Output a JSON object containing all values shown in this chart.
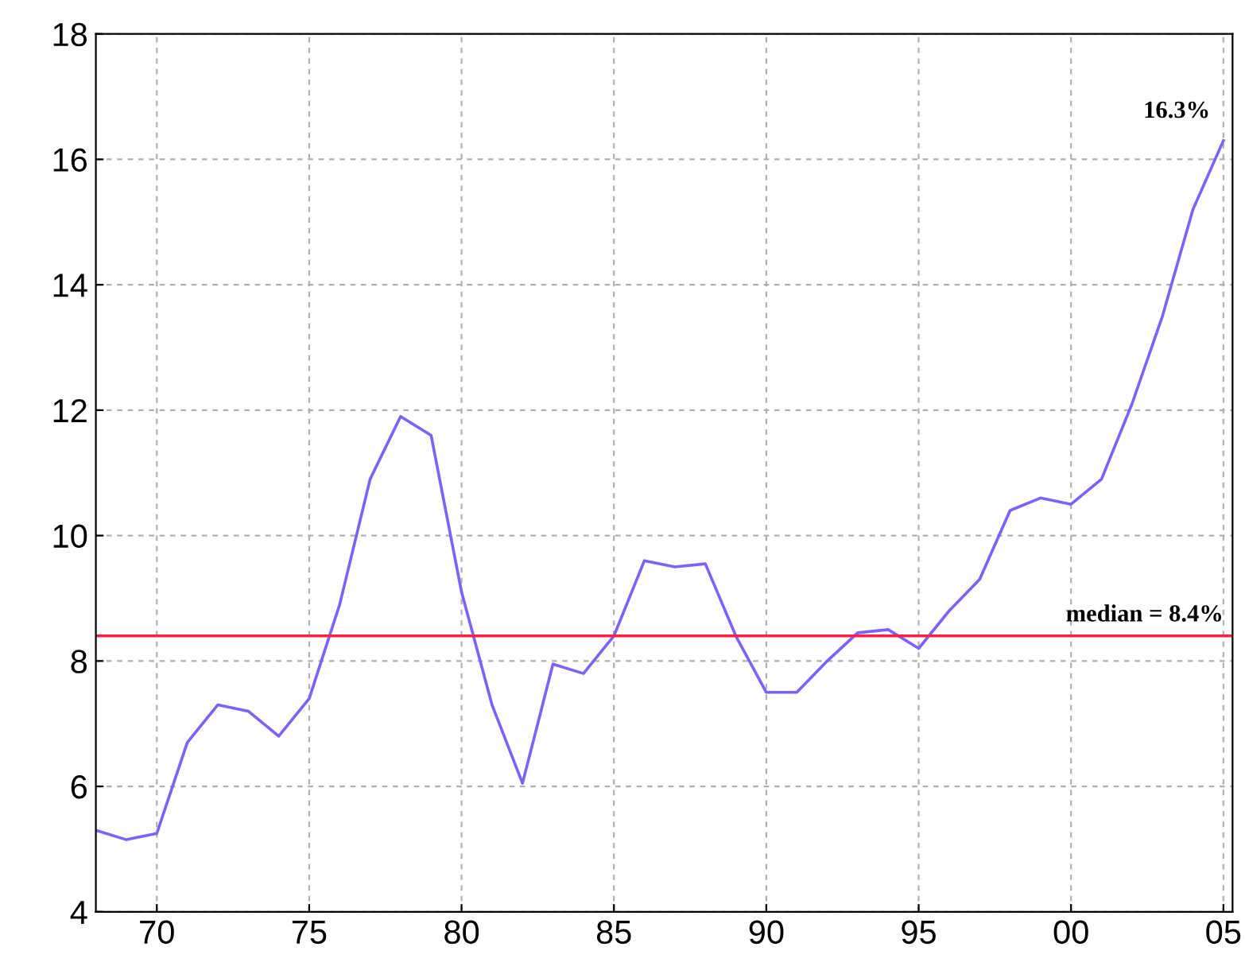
{
  "chart_data": {
    "type": "line",
    "x": [
      1968,
      1969,
      1970,
      1971,
      1972,
      1973,
      1974,
      1975,
      1976,
      1977,
      1978,
      1979,
      1980,
      1981,
      1982,
      1983,
      1984,
      1985,
      1986,
      1987,
      1988,
      1989,
      1990,
      1991,
      1992,
      1993,
      1994,
      1995,
      1996,
      1997,
      1998,
      1999,
      2000,
      2001,
      2002,
      2003,
      2004,
      2005
    ],
    "series": [
      {
        "color": "#7f5fff",
        "values": [
          5.3,
          5.15,
          5.25,
          6.7,
          7.3,
          7.2,
          6.8,
          7.4,
          8.9,
          10.9,
          11.9,
          11.6,
          9.1,
          7.3,
          6.05,
          7.95,
          7.8,
          8.4,
          9.6,
          9.5,
          9.55,
          8.4,
          7.5,
          7.5,
          8.0,
          8.45,
          8.5,
          8.2,
          8.8,
          9.3,
          10.4,
          10.6,
          10.5,
          10.9,
          12.1,
          13.5,
          15.2,
          16.3
        ]
      }
    ],
    "xlim": [
      1968,
      2005.3
    ],
    "xticks": [
      {
        "value": 1970,
        "label": "70"
      },
      {
        "value": 1975,
        "label": "75"
      },
      {
        "value": 1980,
        "label": "80"
      },
      {
        "value": 1985,
        "label": "85"
      },
      {
        "value": 1990,
        "label": "90"
      },
      {
        "value": 1995,
        "label": "95"
      },
      {
        "value": 2000,
        "label": "00"
      },
      {
        "value": 2005,
        "label": "05"
      }
    ],
    "ylim": [
      4,
      18
    ],
    "yticks": [
      4,
      6,
      8,
      10,
      12,
      14,
      16,
      18
    ],
    "grid": true,
    "line_style": "solid",
    "marker": "none",
    "ref_lines": [
      {
        "axis": "y",
        "value": 8.4,
        "label": "median = 8.4%",
        "color": "#ff2040"
      }
    ],
    "annotations": [
      {
        "text": "16.3%",
        "x": 2005,
        "y": 16.3
      }
    ]
  }
}
